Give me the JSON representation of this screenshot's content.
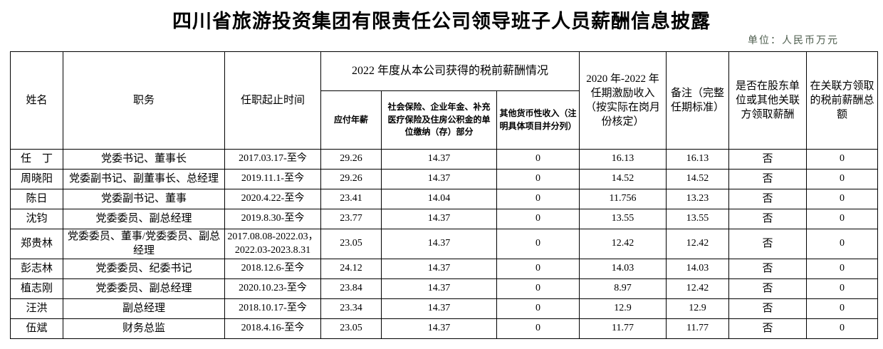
{
  "page": {
    "title": "四川省旅游投资集团有限责任公司领导班子人员薪酬信息披露",
    "unit_note": "单位：人民币万元"
  },
  "colors": {
    "text": "#000000",
    "border": "#000000",
    "background": "#ffffff",
    "unit_note": "#4e5e4e"
  },
  "table": {
    "headers": {
      "name": "姓名",
      "position": "职务",
      "term": "任职起止时间",
      "salary_2022_group": "2022 年度从本公司获得的税前薪酬情况",
      "payable_salary": "应付年薪",
      "social_insurance": "社会保险、企业年金、补充医疗保险及住房公积金的单位缴纳（存）部分",
      "other_income": "其他货币性收入（注明具体项目并分列）",
      "incentive_2020_2022": "2020 年-2022 年任期激励收入（按实际在岗月份核定）",
      "remark": "备注（完整任期标准）",
      "related_party_salary": "是否在股东单位或其他关联方领取薪酬",
      "related_party_total": "在关联方领取的税前薪酬总额"
    },
    "rows": [
      {
        "name": "任　丁",
        "position": "党委书记、董事长",
        "term": "2017.03.17-至今",
        "payable": "29.26",
        "social": "14.37",
        "other": "0",
        "incentive": "16.13",
        "remark": "16.13",
        "related": "否",
        "related_total": "0"
      },
      {
        "name": "周晓阳",
        "position": "党委副书记、副董事长、总经理",
        "term": "2019.11.1-至今",
        "payable": "29.26",
        "social": "14.37",
        "other": "0",
        "incentive": "14.52",
        "remark": "14.52",
        "related": "否",
        "related_total": "0"
      },
      {
        "name": "陈日",
        "position": "党委副书记、董事",
        "term": "2020.4.22-至今",
        "payable": "23.41",
        "social": "14.04",
        "other": "0",
        "incentive": "11.756",
        "remark": "13.23",
        "related": "否",
        "related_total": "0"
      },
      {
        "name": "沈钧",
        "position": "党委委员、副总经理",
        "term": "2019.8.30-至今",
        "payable": "23.77",
        "social": "14.37",
        "other": "0",
        "incentive": "13.55",
        "remark": "13.55",
        "related": "否",
        "related_total": "0"
      },
      {
        "name": "郑贵林",
        "position": "党委委员、董事/党委委员、副总经理",
        "term": "2017.08.08-2022.03，2022.03-2023.8.31",
        "payable": "23.05",
        "social": "14.37",
        "other": "0",
        "incentive": "12.42",
        "remark": "12.42",
        "related": "否",
        "related_total": "0"
      },
      {
        "name": "彭志林",
        "position": "党委委员、纪委书记",
        "term": "2018.12.6-至今",
        "payable": "24.12",
        "social": "14.37",
        "other": "0",
        "incentive": "14.03",
        "remark": "14.03",
        "related": "否",
        "related_total": "0"
      },
      {
        "name": "植志刚",
        "position": "党委委员、副总经理",
        "term": "2020.10.23-至今",
        "payable": "23.84",
        "social": "14.37",
        "other": "0",
        "incentive": "8.97",
        "remark": "12.42",
        "related": "否",
        "related_total": "0"
      },
      {
        "name": "汪洪",
        "position": "副总经理",
        "term": "2018.10.17-至今",
        "payable": "23.34",
        "social": "14.37",
        "other": "0",
        "incentive": "12.9",
        "remark": "12.9",
        "related": "否",
        "related_total": "0"
      },
      {
        "name": "伍斌",
        "position": "财务总监",
        "term": "2018.4.16-至今",
        "payable": "23.05",
        "social": "14.37",
        "other": "0",
        "incentive": "11.77",
        "remark": "11.77",
        "related": "否",
        "related_total": "0"
      }
    ]
  }
}
